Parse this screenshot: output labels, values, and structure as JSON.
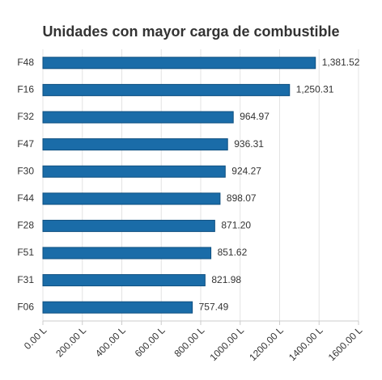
{
  "chart_data": {
    "type": "hbar",
    "title": "Unidades con mayor carga de combustible",
    "categories": [
      "F48",
      "F16",
      "F32",
      "F47",
      "F30",
      "F44",
      "F28",
      "F51",
      "F31",
      "F06"
    ],
    "values": [
      1381.52,
      1250.31,
      964.97,
      936.31,
      924.27,
      898.07,
      871.2,
      851.62,
      821.98,
      757.49
    ],
    "value_labels": [
      "1,381.52",
      "1,250.31",
      "964.97",
      "936.31",
      "924.27",
      "898.07",
      "871.20",
      "851.62",
      "821.98",
      "757.49"
    ],
    "color": "#1a6ca8",
    "xlim": [
      0,
      1600
    ],
    "xticks": [
      {
        "value": 0,
        "label": "0.00 L"
      },
      {
        "value": 200,
        "label": "200.00 L"
      },
      {
        "value": 400,
        "label": "400.00 L"
      },
      {
        "value": 600,
        "label": "600.00 L"
      },
      {
        "value": 800,
        "label": "800.00 L"
      },
      {
        "value": 1000,
        "label": "1000.00 L"
      },
      {
        "value": 1200,
        "label": "1200.00 L"
      },
      {
        "value": 1400,
        "label": "1400.00 L"
      },
      {
        "value": 1600,
        "label": "1600.00 L"
      }
    ],
    "grid": true
  }
}
